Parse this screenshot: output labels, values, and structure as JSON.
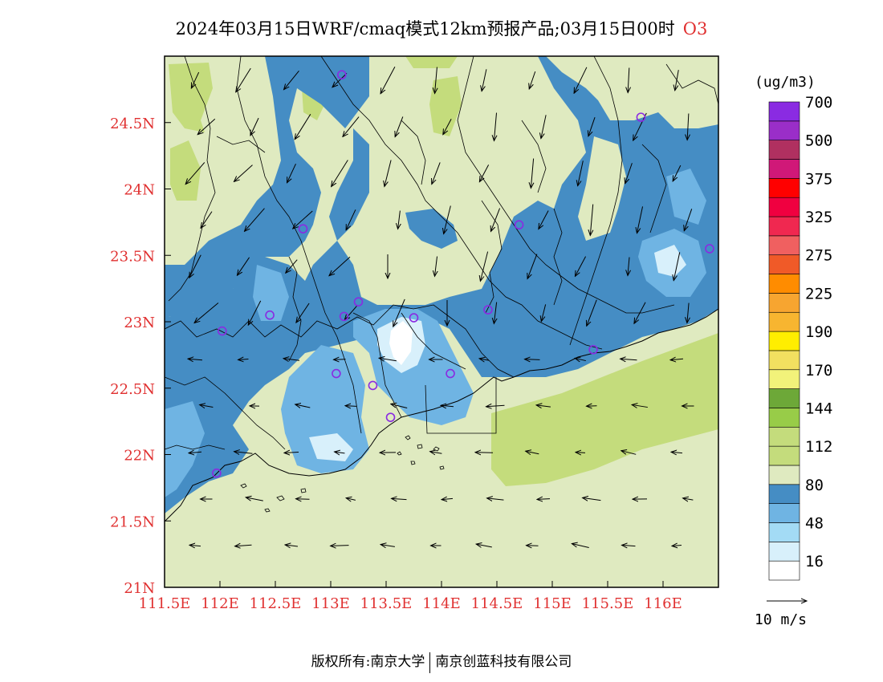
{
  "title": {
    "main": "2024年03月15日WRF/cmaq模式12km预报产品;03月15日00时",
    "pollutant": "O3"
  },
  "footer": {
    "left": "版权所有:南京大学",
    "right": "南京创蓝科技有限公司"
  },
  "map": {
    "lon_range": [
      111.5,
      116.5
    ],
    "lat_range": [
      21,
      25
    ],
    "x_ticks": [
      {
        "value": 111.5,
        "label": "111.5E"
      },
      {
        "value": 112,
        "label": "112E"
      },
      {
        "value": 112.5,
        "label": "112.5E"
      },
      {
        "value": 113,
        "label": "113E"
      },
      {
        "value": 113.5,
        "label": "113.5E"
      },
      {
        "value": 114,
        "label": "114E"
      },
      {
        "value": 114.5,
        "label": "114.5E"
      },
      {
        "value": 115,
        "label": "115E"
      },
      {
        "value": 115.5,
        "label": "115.5E"
      },
      {
        "value": 116,
        "label": "116E"
      }
    ],
    "y_ticks": [
      {
        "value": 21,
        "label": "21N"
      },
      {
        "value": 21.5,
        "label": "21.5N"
      },
      {
        "value": 22,
        "label": "22N"
      },
      {
        "value": 22.5,
        "label": "22.5N"
      },
      {
        "value": 23,
        "label": "23N"
      },
      {
        "value": 23.5,
        "label": "23.5N"
      },
      {
        "value": 24,
        "label": "24N"
      },
      {
        "value": 24.5,
        "label": "24.5N"
      }
    ],
    "stations": [
      {
        "lon": 113.1,
        "lat": 24.86
      },
      {
        "lon": 115.8,
        "lat": 24.54
      },
      {
        "lon": 112.75,
        "lat": 23.7
      },
      {
        "lon": 114.7,
        "lat": 23.73
      },
      {
        "lon": 116.42,
        "lat": 23.55
      },
      {
        "lon": 112.02,
        "lat": 22.93
      },
      {
        "lon": 112.45,
        "lat": 23.05
      },
      {
        "lon": 113.12,
        "lat": 23.04
      },
      {
        "lon": 113.25,
        "lat": 23.15
      },
      {
        "lon": 113.75,
        "lat": 23.03
      },
      {
        "lon": 114.42,
        "lat": 23.09
      },
      {
        "lon": 115.37,
        "lat": 22.79
      },
      {
        "lon": 113.05,
        "lat": 22.61
      },
      {
        "lon": 113.38,
        "lat": 22.52
      },
      {
        "lon": 114.08,
        "lat": 22.61
      },
      {
        "lon": 113.54,
        "lat": 22.28
      },
      {
        "lon": 111.97,
        "lat": 21.86
      }
    ]
  },
  "legend": {
    "unit": "(ug/m3)",
    "colors": [
      "#ffffff",
      "#d8f0fb",
      "#a3dbf5",
      "#6fb4e3",
      "#458dc4",
      "#dfeac0",
      "#c4dc7c",
      "#c4dc7c",
      "#98cc48",
      "#6da838",
      "#f2f27a",
      "#f2e060",
      "#ffee00",
      "#f7b530",
      "#f7a530",
      "#ff8c00",
      "#f05a28",
      "#f06060",
      "#f02850",
      "#f00040",
      "#ff0000",
      "#d01878",
      "#b03060",
      "#9a2ec8",
      "#8a2be2"
    ],
    "labels": [
      {
        "text": "16",
        "boundary": 1
      },
      {
        "text": "48",
        "boundary": 3
      },
      {
        "text": "80",
        "boundary": 5
      },
      {
        "text": "112",
        "boundary": 7
      },
      {
        "text": "144",
        "boundary": 9
      },
      {
        "text": "170",
        "boundary": 11
      },
      {
        "text": "190",
        "boundary": 13
      },
      {
        "text": "225",
        "boundary": 15
      },
      {
        "text": "275",
        "boundary": 17
      },
      {
        "text": "325",
        "boundary": 19
      },
      {
        "text": "375",
        "boundary": 21
      },
      {
        "text": "500",
        "boundary": 23
      },
      {
        "text": "700",
        "boundary": 25
      }
    ]
  },
  "wind_reference": {
    "label": "10 m/s"
  },
  "colors": {
    "axis_label": "#e03030",
    "station": "#8a2be2",
    "band_80_112": "#dfeac0",
    "band_112_144": "#c4dc7c",
    "band_48_80": "#458dc4",
    "band_16_48": "#6fb4e3"
  }
}
